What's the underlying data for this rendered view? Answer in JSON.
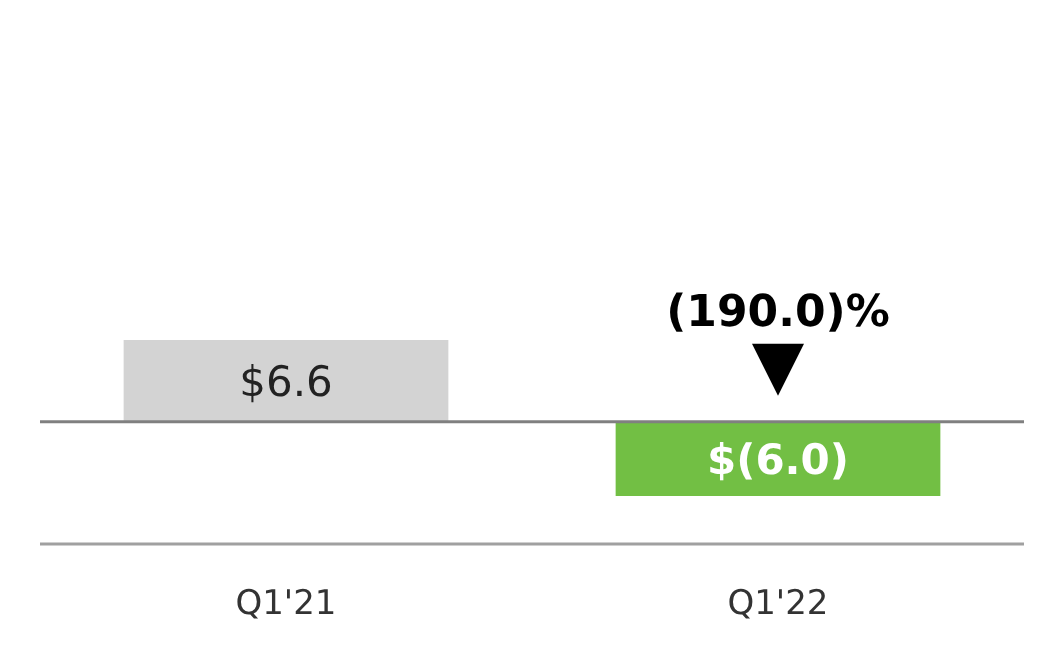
{
  "chart_data": {
    "type": "bar",
    "categories": [
      "Q1'21",
      "Q1'22"
    ],
    "values": [
      6.6,
      -6.0
    ],
    "colors": [
      "#d3d3d3",
      "#72bf44"
    ],
    "value_labels": [
      "$6.6",
      "$(6.0)"
    ],
    "annotations": [
      {
        "text": "(190.0)%",
        "x": "Q1'22",
        "y": 0
      }
    ]
  }
}
